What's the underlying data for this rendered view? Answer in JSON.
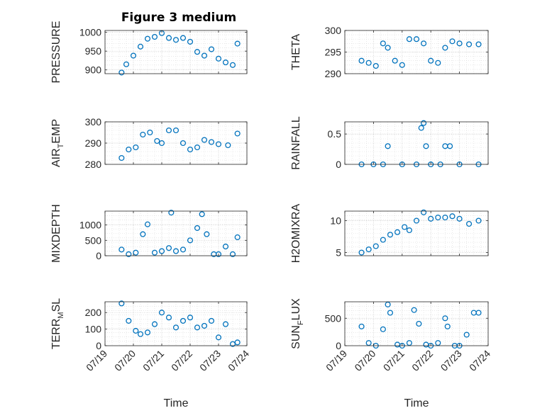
{
  "figure": {
    "title": "Figure 3 medium",
    "series_color": "#0072BD",
    "x_ticks": [
      "07/19",
      "07/20",
      "07/21",
      "07/22",
      "07/23",
      "07/24"
    ],
    "xlabel": "Time"
  },
  "chart_data": [
    {
      "type": "scatter",
      "ylabel": "PRESSURE",
      "ylim": [
        890,
        1005
      ],
      "yticks": [
        900,
        950,
        1000
      ],
      "grid": true,
      "x": [
        "07/19 14:00",
        "07/19 18:00",
        "07/20 00:00",
        "07/20 06:00",
        "07/20 12:00",
        "07/20 18:00",
        "07/21 00:00",
        "07/21 06:00",
        "07/21 12:00",
        "07/21 18:00",
        "07/22 00:00",
        "07/22 06:00",
        "07/22 12:00",
        "07/22 18:00",
        "07/23 00:00",
        "07/23 06:00",
        "07/23 12:00",
        "07/23 16:00"
      ],
      "y": [
        893,
        915,
        938,
        962,
        983,
        988,
        998,
        985,
        980,
        985,
        975,
        948,
        938,
        955,
        930,
        920,
        913,
        970
      ]
    },
    {
      "type": "scatter",
      "ylabel": "THETA",
      "ylim": [
        290,
        300
      ],
      "yticks": [
        290,
        295,
        300
      ],
      "grid": true,
      "x": [
        "07/19 14:00",
        "07/19 20:00",
        "07/20 02:00",
        "07/20 08:00",
        "07/20 12:00",
        "07/20 18:00",
        "07/21 00:00",
        "07/21 06:00",
        "07/21 12:00",
        "07/21 18:00",
        "07/22 00:00",
        "07/22 06:00",
        "07/22 12:00",
        "07/22 18:00",
        "07/23 00:00",
        "07/23 08:00",
        "07/23 16:00"
      ],
      "y": [
        293.0,
        292.5,
        291.8,
        297.0,
        296.0,
        293.0,
        292.0,
        298.0,
        298.0,
        297.0,
        293.0,
        292.5,
        296.0,
        297.5,
        297.0,
        296.8,
        296.8
      ]
    },
    {
      "type": "scatter",
      "ylabel": "AIR_TEMP",
      "ylim": [
        280,
        300
      ],
      "yticks": [
        280,
        290,
        300
      ],
      "grid": true,
      "x": [
        "07/19 14:00",
        "07/19 20:00",
        "07/20 02:00",
        "07/20 08:00",
        "07/20 14:00",
        "07/20 20:00",
        "07/21 00:00",
        "07/21 06:00",
        "07/21 12:00",
        "07/21 18:00",
        "07/22 00:00",
        "07/22 06:00",
        "07/22 12:00",
        "07/22 18:00",
        "07/23 00:00",
        "07/23 08:00",
        "07/23 16:00"
      ],
      "y": [
        283.0,
        287.0,
        288.0,
        294.0,
        295.0,
        291.0,
        290.0,
        296.0,
        296.0,
        290.0,
        287.0,
        288.0,
        291.5,
        290.5,
        289.5,
        289.0,
        294.5
      ]
    },
    {
      "type": "scatter",
      "ylabel": "RAINFALL",
      "ylim": [
        0,
        0.7
      ],
      "yticks": [
        0,
        0.5
      ],
      "grid": true,
      "x": [
        "07/19 14:00",
        "07/20 00:00",
        "07/20 08:00",
        "07/20 12:00",
        "07/21 00:00",
        "07/21 12:00",
        "07/21 16:00",
        "07/21 18:00",
        "07/21 20:00",
        "07/22 00:00",
        "07/22 08:00",
        "07/22 12:00",
        "07/22 16:00",
        "07/23 00:00",
        "07/23 16:00"
      ],
      "y": [
        0,
        0,
        0,
        0.3,
        0,
        0,
        0.6,
        0.68,
        0.3,
        0,
        0,
        0.3,
        0.3,
        0,
        0
      ]
    },
    {
      "type": "scatter",
      "ylabel": "MIXDEPTH",
      "ylim": [
        0,
        1450
      ],
      "yticks": [
        0,
        500,
        1000
      ],
      "grid": true,
      "x": [
        "07/19 14:00",
        "07/19 20:00",
        "07/20 02:00",
        "07/20 08:00",
        "07/20 12:00",
        "07/20 18:00",
        "07/21 00:00",
        "07/21 06:00",
        "07/21 08:00",
        "07/21 12:00",
        "07/21 18:00",
        "07/22 00:00",
        "07/22 06:00",
        "07/22 10:00",
        "07/22 14:00",
        "07/22 20:00",
        "07/23 00:00",
        "07/23 06:00",
        "07/23 12:00",
        "07/23 16:00"
      ],
      "y": [
        200,
        50,
        100,
        700,
        1020,
        100,
        150,
        250,
        1400,
        150,
        200,
        500,
        900,
        1350,
        700,
        50,
        50,
        300,
        50,
        600
      ]
    },
    {
      "type": "scatter",
      "ylabel": "H2OMIXRA",
      "ylim": [
        4.5,
        11.5
      ],
      "yticks": [
        5,
        10
      ],
      "grid": true,
      "x": [
        "07/19 14:00",
        "07/19 20:00",
        "07/20 02:00",
        "07/20 08:00",
        "07/20 14:00",
        "07/20 20:00",
        "07/21 02:00",
        "07/21 06:00",
        "07/21 12:00",
        "07/21 18:00",
        "07/22 00:00",
        "07/22 06:00",
        "07/22 12:00",
        "07/22 18:00",
        "07/23 00:00",
        "07/23 08:00",
        "07/23 16:00"
      ],
      "y": [
        5.0,
        5.5,
        6.0,
        7.0,
        7.8,
        8.2,
        9.0,
        8.5,
        10.0,
        11.3,
        10.3,
        10.5,
        10.5,
        10.7,
        10.3,
        9.5,
        10.0
      ]
    },
    {
      "type": "scatter",
      "ylabel": "TERR_MSL",
      "ylim": [
        0,
        265
      ],
      "yticks": [
        0,
        100,
        200
      ],
      "grid": true,
      "x": [
        "07/19 14:00",
        "07/19 20:00",
        "07/20 02:00",
        "07/20 06:00",
        "07/20 12:00",
        "07/20 18:00",
        "07/21 00:00",
        "07/21 06:00",
        "07/21 12:00",
        "07/21 18:00",
        "07/22 00:00",
        "07/22 06:00",
        "07/22 12:00",
        "07/22 18:00",
        "07/23 00:00",
        "07/23 06:00",
        "07/23 12:00",
        "07/23 16:00"
      ],
      "y": [
        255,
        150,
        90,
        70,
        80,
        130,
        200,
        170,
        110,
        150,
        170,
        110,
        120,
        150,
        50,
        130,
        10,
        20
      ]
    },
    {
      "type": "scatter",
      "ylabel": "SUN_FLUX",
      "ylim": [
        0,
        800
      ],
      "yticks": [
        0,
        500
      ],
      "grid": true,
      "x": [
        "07/19 14:00",
        "07/19 20:00",
        "07/20 02:00",
        "07/20 08:00",
        "07/20 12:00",
        "07/20 14:00",
        "07/20 20:00",
        "07/21 00:00",
        "07/21 06:00",
        "07/21 10:00",
        "07/21 14:00",
        "07/21 20:00",
        "07/22 00:00",
        "07/22 06:00",
        "07/22 12:00",
        "07/22 14:00",
        "07/22 20:00",
        "07/23 00:00",
        "07/23 06:00",
        "07/23 12:00",
        "07/23 16:00"
      ],
      "y": [
        350,
        50,
        0,
        300,
        750,
        600,
        20,
        0,
        50,
        650,
        400,
        20,
        0,
        50,
        500,
        350,
        0,
        0,
        200,
        600,
        600
      ]
    }
  ]
}
